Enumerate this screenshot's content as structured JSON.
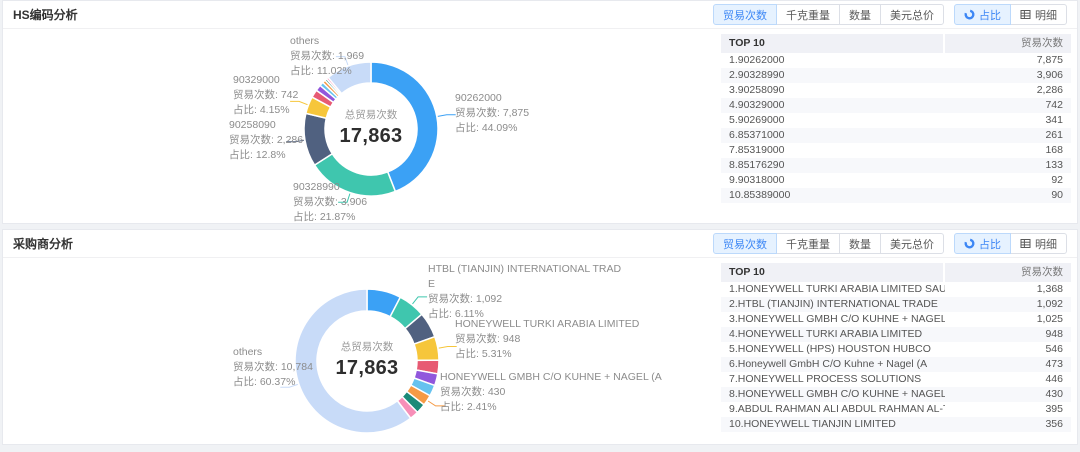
{
  "panels": [
    {
      "title": "HS编码分析",
      "metric_buttons": [
        "贸易次数",
        "千克重量",
        "数量",
        "美元总价"
      ],
      "view_buttons": [
        "占比",
        "明细"
      ],
      "table": {
        "header": [
          "TOP 10",
          "贸易次数"
        ],
        "rows": [
          {
            "name": "1.90262000",
            "value": "7,875"
          },
          {
            "name": "2.90328990",
            "value": "3,906"
          },
          {
            "name": "3.90258090",
            "value": "2,286"
          },
          {
            "name": "4.90329000",
            "value": "742"
          },
          {
            "name": "5.90269000",
            "value": "341"
          },
          {
            "name": "6.85371000",
            "value": "261"
          },
          {
            "name": "7.85319000",
            "value": "168"
          },
          {
            "name": "8.85176290",
            "value": "133"
          },
          {
            "name": "9.90318000",
            "value": "92"
          },
          {
            "name": "10.85389000",
            "value": "90"
          }
        ]
      }
    },
    {
      "title": "采购商分析",
      "metric_buttons": [
        "贸易次数",
        "千克重量",
        "数量",
        "美元总价"
      ],
      "view_buttons": [
        "占比",
        "明细"
      ],
      "table": {
        "header": [
          "TOP 10",
          "贸易次数"
        ],
        "rows": [
          {
            "name": "1.HONEYWELL TURKI ARABIA LIMITED SAUD",
            "value": "1,368"
          },
          {
            "name": "2.HTBL (TIANJIN) INTERNATIONAL TRADE",
            "value": "1,092"
          },
          {
            "name": "3.HONEYWELL GMBH C/O KUHNE + NAGEL",
            "value": "1,025"
          },
          {
            "name": "4.HONEYWELL TURKI ARABIA LIMITED",
            "value": "948"
          },
          {
            "name": "5.HONEYWELL (HPS) HOUSTON HUBCO",
            "value": "546"
          },
          {
            "name": "6.Honeywell GmbH C/O Kuhne + Nagel (A",
            "value": "473"
          },
          {
            "name": "7.HONEYWELL PROCESS SOLUTIONS",
            "value": "446"
          },
          {
            "name": "8.HONEYWELL GMBH C/O KUHNE + NAGEL (A",
            "value": "430"
          },
          {
            "name": "9.ABDUL RAHMAN ALI ABDUL RAHMAN AL-TU",
            "value": "395"
          },
          {
            "name": "10.HONEYWELL TIANJIN LIMITED",
            "value": "356"
          }
        ]
      }
    }
  ],
  "chart_data": [
    {
      "type": "pie",
      "title": "HS编码分析 - 贸易次数占比",
      "total_label": "总贸易次数",
      "total_value": "17,863",
      "legend_position": "none",
      "colors": [
        "#3BA1F5",
        "#3FC6AE",
        "#506180",
        "#F6C63B",
        "#E75A73",
        "#9157DC",
        "#66C2EF",
        "#F59A45",
        "#1B8A78",
        "#F78FB8",
        "#C8DBF8"
      ],
      "segments": [
        {
          "label": "90262000",
          "value": 7875,
          "pct": "44.09%"
        },
        {
          "label": "90328990",
          "value": 3906,
          "pct": "21.87%"
        },
        {
          "label": "90258090",
          "value": 2286,
          "pct": "12.8%"
        },
        {
          "label": "90329000",
          "value": 742,
          "pct": "4.15%"
        },
        {
          "label": "90269000",
          "value": 341,
          "pct": "1.91%"
        },
        {
          "label": "85371000",
          "value": 261,
          "pct": "1.46%"
        },
        {
          "label": "85319000",
          "value": 168,
          "pct": "0.94%"
        },
        {
          "label": "85176290",
          "value": 133,
          "pct": "0.74%"
        },
        {
          "label": "90318000",
          "value": 92,
          "pct": "0.52%"
        },
        {
          "label": "85389000",
          "value": 90,
          "pct": "0.5%"
        },
        {
          "label": "others",
          "value": 1969,
          "pct": "11.02%"
        }
      ],
      "callouts": [
        {
          "lines": [
            "90262000",
            "贸易次数: 7,875",
            "占比: 44.09%"
          ]
        },
        {
          "lines": [
            "90328990",
            "贸易次数: 3,906",
            "占比: 21.87%"
          ]
        },
        {
          "lines": [
            "90258090",
            "贸易次数: 2,286",
            "占比: 12.8%"
          ]
        },
        {
          "lines": [
            "90329000",
            "贸易次数: 742",
            "占比: 4.15%"
          ]
        },
        {
          "lines": [
            "others",
            "贸易次数: 1,969",
            "占比: 11.02%"
          ]
        }
      ]
    },
    {
      "type": "pie",
      "title": "采购商分析 - 贸易次数占比",
      "total_label": "总贸易次数",
      "total_value": "17,863",
      "legend_position": "none",
      "colors": [
        "#3BA1F5",
        "#3FC6AE",
        "#506180",
        "#F6C63B",
        "#E75A73",
        "#9157DC",
        "#66C2EF",
        "#F59A45",
        "#1B8A78",
        "#F78FB8",
        "#C8DBF8"
      ],
      "segments": [
        {
          "label": "HONEYWELL TURKI ARABIA LIMITED SAUD",
          "value": 1368,
          "pct": "7.66%"
        },
        {
          "label": "HTBL (TIANJIN) INTERNATIONAL TRADE",
          "value": 1092,
          "pct": "6.11%"
        },
        {
          "label": "HONEYWELL GMBH C/O KUHNE + NAGEL",
          "value": 1025,
          "pct": "5.74%"
        },
        {
          "label": "HONEYWELL TURKI ARABIA LIMITED",
          "value": 948,
          "pct": "5.31%"
        },
        {
          "label": "HONEYWELL (HPS) HOUSTON HUBCO",
          "value": 546,
          "pct": "3.06%"
        },
        {
          "label": "Honeywell GmbH C/O Kuhne + Nagel (A",
          "value": 473,
          "pct": "2.65%"
        },
        {
          "label": "HONEYWELL PROCESS SOLUTIONS",
          "value": 446,
          "pct": "2.5%"
        },
        {
          "label": "HONEYWELL GMBH C/O KUHNE + NAGEL (A",
          "value": 430,
          "pct": "2.41%"
        },
        {
          "label": "ABDUL RAHMAN ALI ABDUL RAHMAN AL-TU",
          "value": 395,
          "pct": "2.21%"
        },
        {
          "label": "HONEYWELL TIANJIN LIMITED",
          "value": 356,
          "pct": "1.99%"
        },
        {
          "label": "others",
          "value": 10784,
          "pct": "60.37%"
        }
      ],
      "callouts": [
        {
          "lines": [
            "HTBL (TIANJIN) INTERNATIONAL TRADE",
            "贸易次数: 1,092",
            "占比: 6.11%"
          ]
        },
        {
          "lines": [
            "HONEYWELL TURKI ARABIA LIMITED",
            "贸易次数: 948",
            "占比: 5.31%"
          ]
        },
        {
          "lines": [
            "HONEYWELL GMBH C/O KUHNE + NAGEL (A",
            "贸易次数: 430",
            "占比: 2.41%"
          ]
        },
        {
          "lines": [
            "others",
            "贸易次数: 10,784",
            "占比: 60.37%"
          ]
        }
      ]
    }
  ]
}
